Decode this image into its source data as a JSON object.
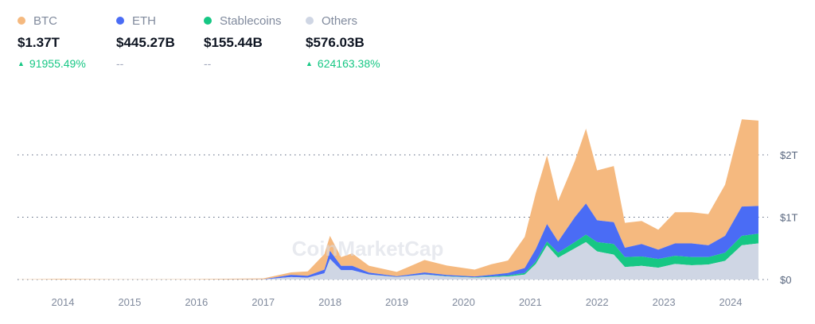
{
  "legend": [
    {
      "name": "BTC",
      "value": "$1.37T",
      "change": "91955.49%",
      "direction": "up",
      "color": "#f5b97f"
    },
    {
      "name": "ETH",
      "value": "$445.27B",
      "change": "--",
      "direction": "none",
      "color": "#4a6cf5"
    },
    {
      "name": "Stablecoins",
      "value": "$155.44B",
      "change": "--",
      "direction": "none",
      "color": "#16c784"
    },
    {
      "name": "Others",
      "value": "$576.03B",
      "change": "624163.38%",
      "direction": "up",
      "color": "#cfd6e4"
    }
  ],
  "watermark": "CoinMarketCap",
  "chart_data": {
    "type": "area",
    "stacked": true,
    "title": "",
    "xlabel": "",
    "ylabel": "",
    "x_ticks": [
      "2014",
      "2015",
      "2016",
      "2017",
      "2018",
      "2019",
      "2020",
      "2021",
      "2022",
      "2023",
      "2024"
    ],
    "y_ticks": [
      "$0",
      "$1T",
      "$2T"
    ],
    "ylim": [
      0,
      3
    ],
    "unit": "trillion USD",
    "grid": "horizontal dotted",
    "y_axis": "right",
    "dates": [
      "2013-05",
      "2014-01",
      "2015-01",
      "2016-01",
      "2017-01",
      "2017-06",
      "2017-09",
      "2017-12",
      "2018-01",
      "2018-03",
      "2018-05",
      "2018-08",
      "2019-01",
      "2019-06",
      "2019-10",
      "2020-03",
      "2020-06",
      "2020-09",
      "2020-12",
      "2021-02",
      "2021-04",
      "2021-06",
      "2021-09",
      "2021-11",
      "2022-01",
      "2022-04",
      "2022-06",
      "2022-09",
      "2022-12",
      "2023-03",
      "2023-06",
      "2023-09",
      "2023-12",
      "2024-03",
      "2024-06"
    ],
    "series": [
      {
        "name": "Others",
        "color": "#cfd6e4",
        "values": [
          0,
          0.001,
          0.001,
          0.001,
          0.002,
          0.04,
          0.03,
          0.1,
          0.33,
          0.15,
          0.15,
          0.08,
          0.04,
          0.08,
          0.05,
          0.03,
          0.04,
          0.05,
          0.08,
          0.25,
          0.55,
          0.35,
          0.5,
          0.6,
          0.45,
          0.4,
          0.2,
          0.22,
          0.19,
          0.25,
          0.23,
          0.24,
          0.3,
          0.55,
          0.58
        ]
      },
      {
        "name": "Stablecoins",
        "color": "#16c784",
        "values": [
          0,
          0,
          0,
          0,
          0,
          0,
          0,
          0,
          0,
          0,
          0,
          0.002,
          0.002,
          0.003,
          0.004,
          0.005,
          0.01,
          0.015,
          0.025,
          0.04,
          0.06,
          0.08,
          0.1,
          0.12,
          0.15,
          0.17,
          0.16,
          0.15,
          0.14,
          0.13,
          0.13,
          0.12,
          0.13,
          0.15,
          0.155
        ]
      },
      {
        "name": "ETH",
        "color": "#4a6cf5",
        "values": [
          0,
          0,
          0,
          0.001,
          0.001,
          0.035,
          0.03,
          0.06,
          0.13,
          0.07,
          0.07,
          0.03,
          0.01,
          0.03,
          0.02,
          0.015,
          0.025,
          0.04,
          0.08,
          0.2,
          0.28,
          0.18,
          0.4,
          0.5,
          0.35,
          0.35,
          0.15,
          0.2,
          0.15,
          0.2,
          0.22,
          0.19,
          0.27,
          0.47,
          0.445
        ]
      },
      {
        "name": "BTC",
        "color": "#f5b97f",
        "values": [
          0.002,
          0.012,
          0.004,
          0.006,
          0.015,
          0.04,
          0.07,
          0.25,
          0.24,
          0.14,
          0.2,
          0.11,
          0.07,
          0.2,
          0.15,
          0.11,
          0.17,
          0.2,
          0.5,
          0.9,
          1.1,
          0.65,
          0.9,
          1.2,
          0.8,
          0.9,
          0.4,
          0.37,
          0.32,
          0.5,
          0.5,
          0.5,
          0.82,
          1.4,
          1.37
        ]
      }
    ]
  }
}
